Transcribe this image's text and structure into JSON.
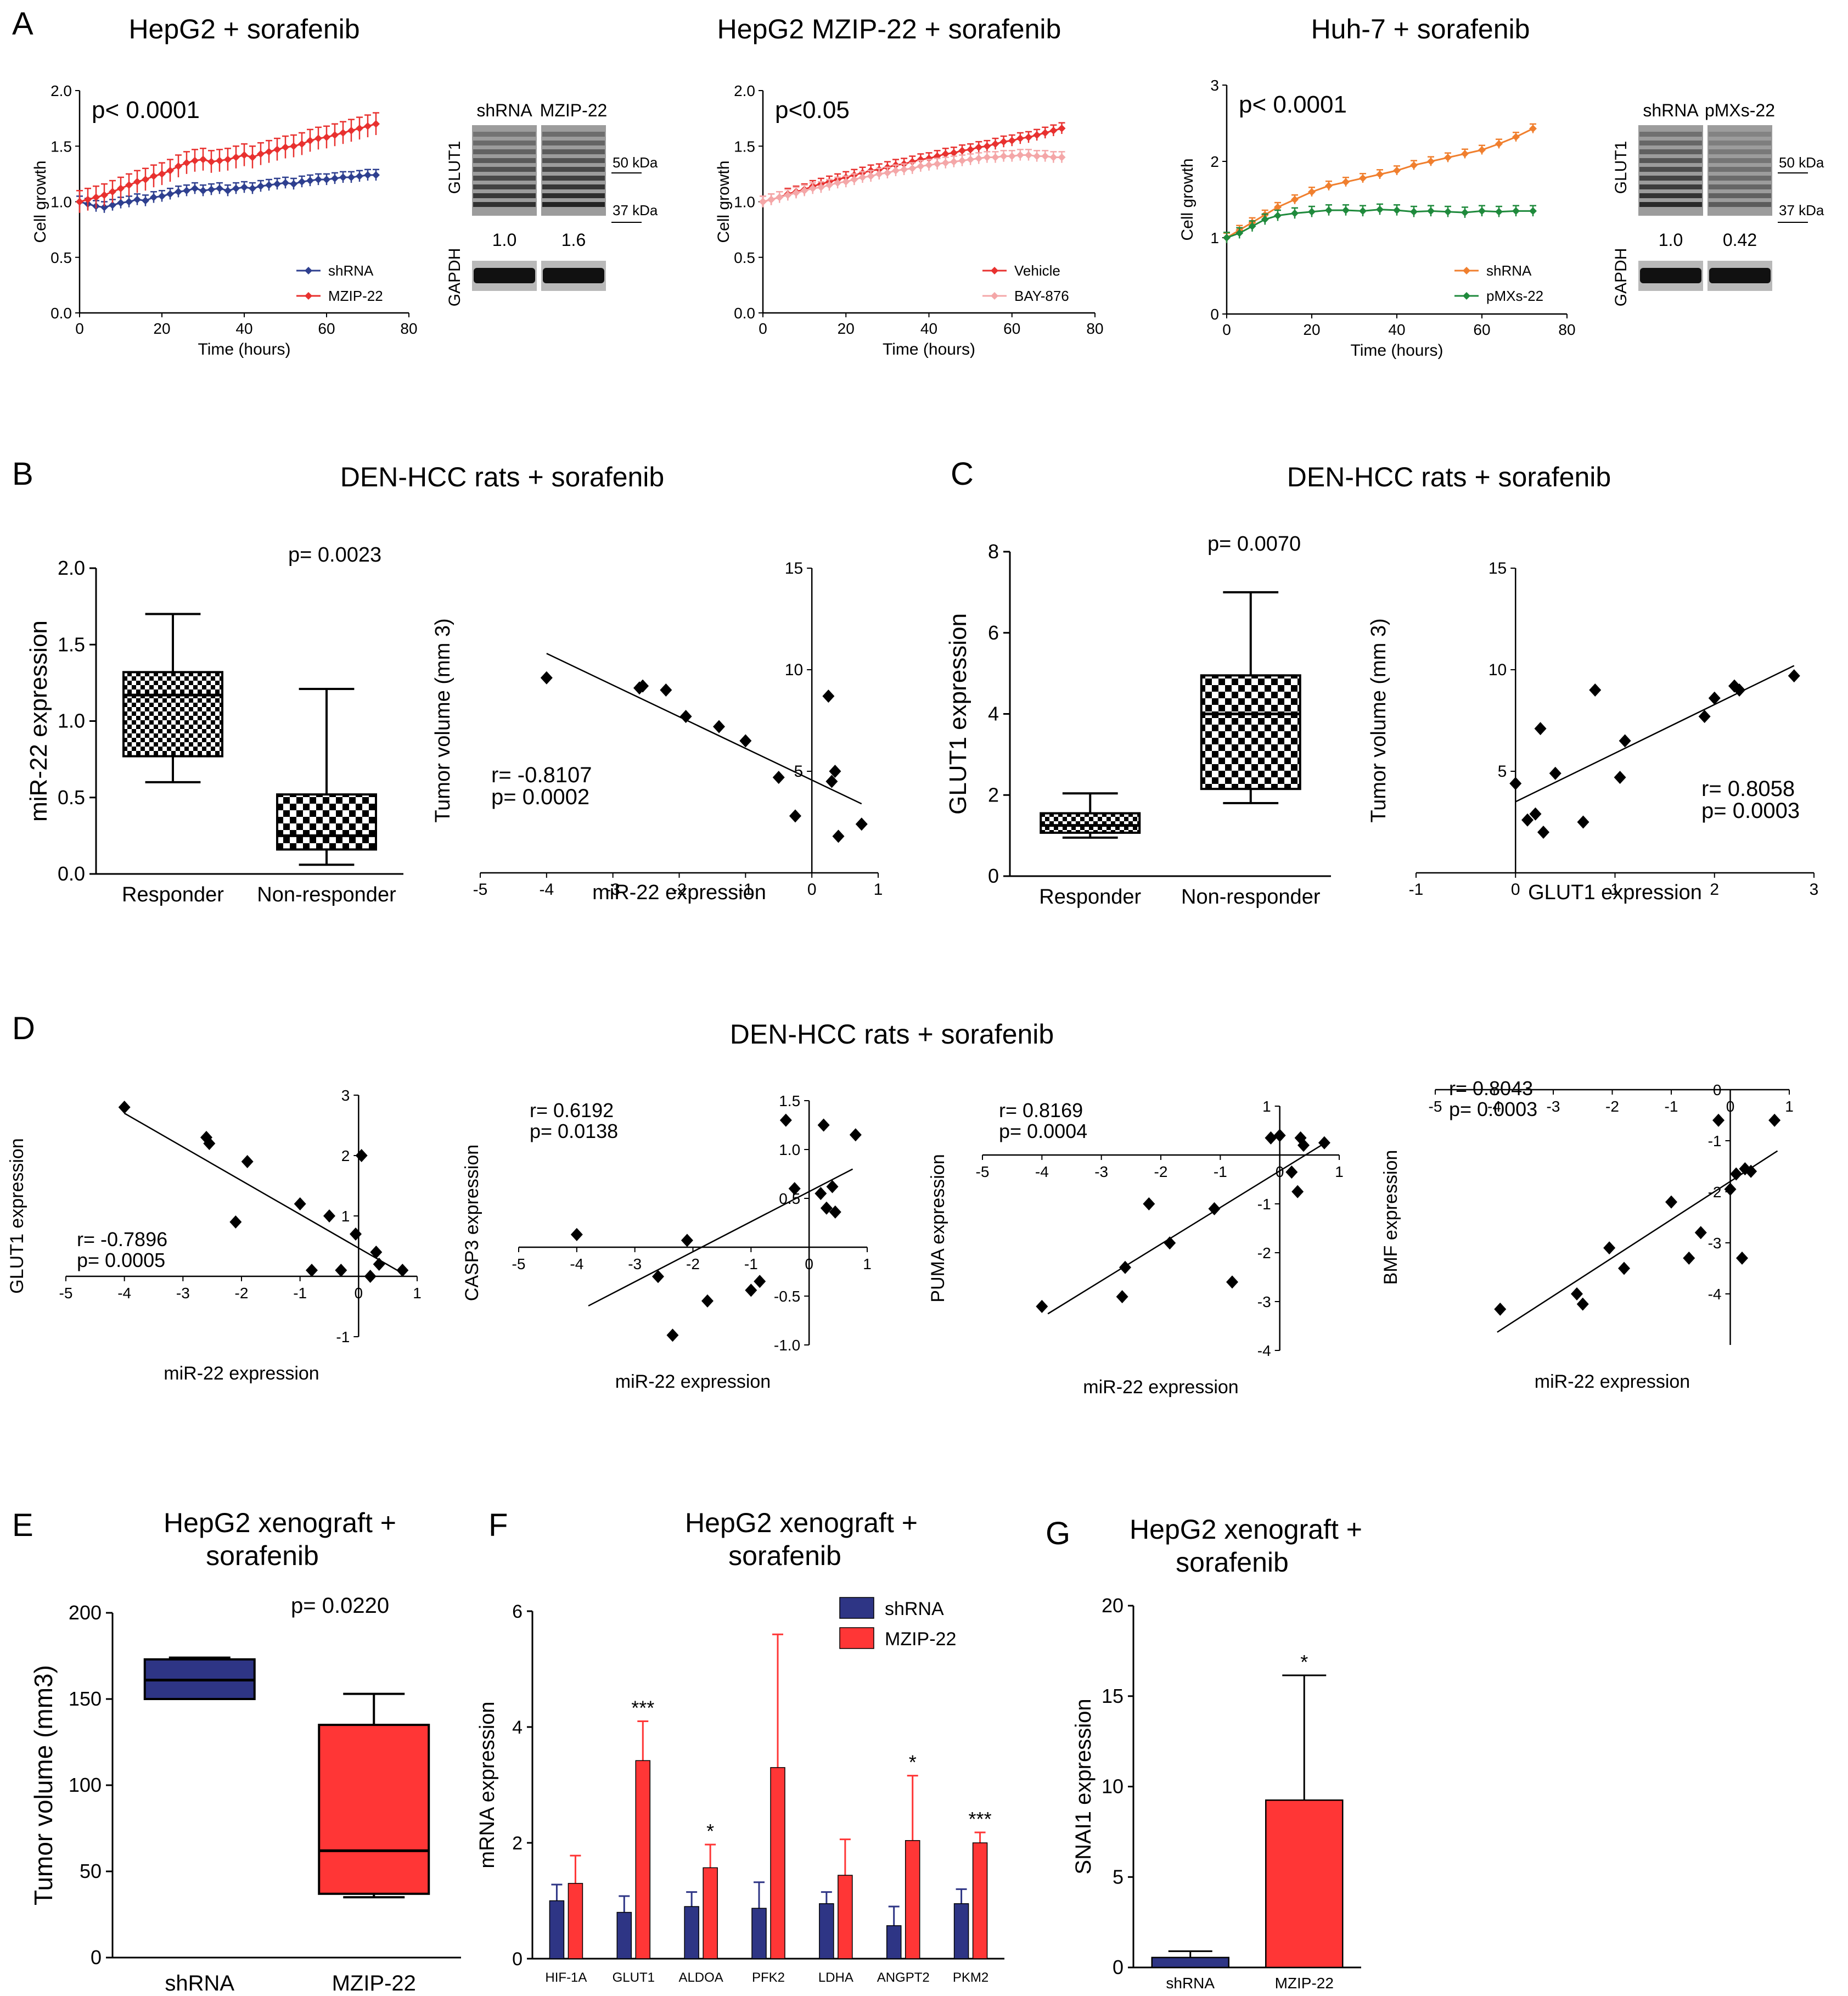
{
  "panels": {
    "A": "A",
    "B": "B",
    "C": "C",
    "D": "D",
    "E": "E",
    "F": "F",
    "G": "G"
  },
  "titles": {
    "a1": "HepG2 + sorafenib",
    "a2": "HepG2 MZIP-22 + sorafenib",
    "a3": "Huh-7 + sorafenib",
    "b": "DEN-HCC rats + sorafenib",
    "c": "DEN-HCC rats + sorafenib",
    "d": "DEN-HCC rats + sorafenib",
    "e1": "HepG2 xenograft  +",
    "e2": "sorafenib",
    "f1": "HepG2 xenograft  +",
    "f2": "sorafenib",
    "g1": "HepG2 xenograft  +",
    "g2": "sorafenib"
  },
  "blots": [
    {
      "lanes": [
        "shRNA",
        "MZIP-22"
      ],
      "protein": "GLUT1",
      "loading": "GAPDH",
      "markers": [
        "50 kDa",
        "37 kDa"
      ],
      "quant": [
        "1.0",
        "1.6"
      ]
    },
    {
      "lanes": [
        "shRNA",
        "pMXs-22"
      ],
      "protein": "GLUT1",
      "loading": "GAPDH",
      "markers": [
        "50 kDa",
        "37 kDa"
      ],
      "quant": [
        "1.0",
        "0.42"
      ]
    }
  ],
  "chart_data": [
    {
      "id": "A1",
      "type": "line",
      "title": "HepG2 + sorafenib",
      "xlabel": "Time (hours)",
      "ylabel": "Cell growth",
      "xlim": [
        0,
        80
      ],
      "ylim": [
        0,
        2.0
      ],
      "xticks": [
        0,
        20,
        40,
        60,
        80
      ],
      "yticks": [
        0,
        0.5,
        1.0,
        1.5,
        2.0
      ],
      "yticklabels": [
        "0.0",
        "0.5",
        "1.0",
        "1.5",
        "2.0"
      ],
      "annotation": "p< 0.0001",
      "x": [
        0,
        2,
        4,
        6,
        8,
        10,
        12,
        14,
        16,
        18,
        20,
        22,
        24,
        26,
        28,
        30,
        32,
        34,
        36,
        38,
        40,
        42,
        44,
        46,
        48,
        50,
        52,
        54,
        56,
        58,
        60,
        62,
        64,
        66,
        68,
        70,
        72
      ],
      "series": [
        {
          "name": "shRNA",
          "color": "#2e3f8f",
          "values": [
            1.0,
            0.98,
            0.96,
            0.95,
            0.97,
            0.99,
            1.0,
            1.02,
            1.01,
            1.04,
            1.05,
            1.07,
            1.09,
            1.1,
            1.12,
            1.1,
            1.11,
            1.12,
            1.1,
            1.12,
            1.13,
            1.12,
            1.14,
            1.15,
            1.16,
            1.17,
            1.16,
            1.18,
            1.19,
            1.2,
            1.2,
            1.21,
            1.22,
            1.22,
            1.23,
            1.24,
            1.24
          ],
          "err": 0.05
        },
        {
          "name": "MZIP-22",
          "color": "#e8312f",
          "values": [
            1.0,
            1.02,
            1.04,
            1.06,
            1.09,
            1.12,
            1.15,
            1.18,
            1.2,
            1.23,
            1.25,
            1.28,
            1.32,
            1.35,
            1.37,
            1.38,
            1.36,
            1.37,
            1.38,
            1.4,
            1.42,
            1.4,
            1.43,
            1.45,
            1.47,
            1.49,
            1.5,
            1.52,
            1.55,
            1.57,
            1.58,
            1.6,
            1.62,
            1.64,
            1.66,
            1.68,
            1.7
          ],
          "err": 0.1
        }
      ]
    },
    {
      "id": "A2",
      "type": "line",
      "title": "HepG2 MZIP-22 + sorafenib",
      "xlabel": "Time (hours)",
      "ylabel": "Cell growth",
      "xlim": [
        0,
        80
      ],
      "ylim": [
        0,
        2.0
      ],
      "xticks": [
        0,
        20,
        40,
        60,
        80
      ],
      "yticks": [
        0,
        0.5,
        1.0,
        1.5,
        2.0
      ],
      "yticklabels": [
        "0.0",
        "0.5",
        "1.0",
        "1.5",
        "2.0"
      ],
      "annotation": "p<0.05",
      "x": [
        0,
        2,
        4,
        6,
        8,
        10,
        12,
        14,
        16,
        18,
        20,
        22,
        24,
        26,
        28,
        30,
        32,
        34,
        36,
        38,
        40,
        42,
        44,
        46,
        48,
        50,
        52,
        54,
        56,
        58,
        60,
        62,
        64,
        66,
        68,
        70,
        72
      ],
      "series": [
        {
          "name": "Vehicle",
          "color": "#e8312f",
          "values": [
            1.0,
            1.02,
            1.04,
            1.07,
            1.09,
            1.11,
            1.14,
            1.16,
            1.18,
            1.2,
            1.22,
            1.24,
            1.26,
            1.28,
            1.29,
            1.31,
            1.33,
            1.34,
            1.36,
            1.38,
            1.39,
            1.41,
            1.43,
            1.44,
            1.46,
            1.47,
            1.49,
            1.5,
            1.52,
            1.54,
            1.55,
            1.57,
            1.58,
            1.6,
            1.62,
            1.64,
            1.66
          ],
          "err": 0.05
        },
        {
          "name": "BAY-876",
          "color": "#f4a7a8",
          "values": [
            1.0,
            1.02,
            1.04,
            1.06,
            1.08,
            1.1,
            1.12,
            1.13,
            1.15,
            1.17,
            1.18,
            1.2,
            1.22,
            1.23,
            1.25,
            1.26,
            1.28,
            1.29,
            1.3,
            1.32,
            1.33,
            1.34,
            1.35,
            1.36,
            1.37,
            1.38,
            1.39,
            1.4,
            1.4,
            1.41,
            1.41,
            1.42,
            1.42,
            1.41,
            1.41,
            1.4,
            1.4
          ],
          "err": 0.05
        }
      ]
    },
    {
      "id": "A3",
      "type": "line",
      "title": "Huh-7 + sorafenib",
      "xlabel": "Time (hours)",
      "ylabel": "Cell growth",
      "xlim": [
        0,
        80
      ],
      "ylim": [
        0,
        3
      ],
      "xticks": [
        0,
        20,
        40,
        60,
        80
      ],
      "yticks": [
        0,
        1,
        2,
        3
      ],
      "yticklabels": [
        "0",
        "1",
        "2",
        "3"
      ],
      "annotation": "p< 0.0001",
      "x": [
        0,
        3,
        6,
        9,
        12,
        16,
        20,
        24,
        28,
        32,
        36,
        40,
        44,
        48,
        52,
        56,
        60,
        64,
        68,
        72
      ],
      "series": [
        {
          "name": "shRNA",
          "color": "#f07f2e",
          "values": [
            1.0,
            1.1,
            1.2,
            1.3,
            1.4,
            1.5,
            1.6,
            1.68,
            1.73,
            1.78,
            1.83,
            1.88,
            1.95,
            2.0,
            2.05,
            2.1,
            2.15,
            2.23,
            2.32,
            2.43
          ],
          "err": 0.06
        },
        {
          "name": "pMXs-22",
          "color": "#1f8a3c",
          "values": [
            1.0,
            1.06,
            1.15,
            1.24,
            1.29,
            1.32,
            1.34,
            1.36,
            1.36,
            1.35,
            1.37,
            1.36,
            1.34,
            1.35,
            1.34,
            1.33,
            1.35,
            1.34,
            1.35,
            1.35
          ],
          "err": 0.07
        }
      ]
    },
    {
      "id": "B1",
      "type": "box",
      "ylabel": "miR-22 expression",
      "ylim": [
        0,
        2.0
      ],
      "yticks": [
        0,
        0.5,
        1.0,
        1.5,
        2.0
      ],
      "yticklabels": [
        "0.0",
        "0.5",
        "1.0",
        "1.5",
        "2.0"
      ],
      "categories": [
        "Responder",
        "Non-responder"
      ],
      "boxes": [
        {
          "min": 0.6,
          "q1": 0.77,
          "median": 1.17,
          "q3": 1.32,
          "max": 1.7,
          "fill": "checker-small"
        },
        {
          "min": 0.06,
          "q1": 0.16,
          "median": 0.25,
          "q3": 0.52,
          "max": 1.21,
          "fill": "checker-large"
        }
      ],
      "annotation": "p= 0.0023"
    },
    {
      "id": "B2",
      "type": "scatter",
      "xlabel": "miR-22 expression",
      "ylabel": "Tumor volume (mm 3)",
      "xlim": [
        -5,
        1
      ],
      "ylim": [
        0,
        15
      ],
      "xticks": [
        -5,
        -4,
        -3,
        -2,
        -1,
        0,
        1
      ],
      "yticks": [
        5,
        10,
        15
      ],
      "x": [
        -4.0,
        -2.6,
        -2.55,
        -2.2,
        -1.9,
        -1.4,
        -1.0,
        -0.5,
        -0.25,
        0.25,
        0.3,
        0.35,
        0.4,
        0.75
      ],
      "y": [
        9.6,
        9.1,
        9.2,
        9.0,
        7.7,
        7.2,
        6.5,
        4.7,
        2.8,
        8.7,
        4.5,
        5.0,
        1.8,
        2.4
      ],
      "fit": {
        "x": [
          -4.0,
          0.75
        ],
        "y": [
          10.8,
          3.4
        ]
      },
      "annotation": [
        "r= -0.8107",
        "p=  0.0002"
      ]
    },
    {
      "id": "C1",
      "type": "box",
      "ylabel": "GLUT1 expression",
      "ylim": [
        0,
        8
      ],
      "yticks": [
        0,
        2,
        4,
        6,
        8
      ],
      "yticklabels": [
        "0",
        "2",
        "4",
        "6",
        "8"
      ],
      "categories": [
        "Responder",
        "Non-responder"
      ],
      "boxes": [
        {
          "min": 0.95,
          "q1": 1.07,
          "median": 1.25,
          "q3": 1.55,
          "max": 2.04,
          "fill": "checker-small"
        },
        {
          "min": 1.8,
          "q1": 2.15,
          "median": 4.0,
          "q3": 4.95,
          "max": 7.0,
          "fill": "checker-large"
        }
      ],
      "annotation": "p= 0.0070"
    },
    {
      "id": "C2",
      "type": "scatter",
      "xlabel": "GLUT1 expression",
      "ylabel": "Tumor volume (mm 3)",
      "xlim": [
        -1,
        3
      ],
      "ylim": [
        0,
        15
      ],
      "xticks": [
        -1,
        0,
        1,
        2,
        3
      ],
      "yticks": [
        5,
        10,
        15
      ],
      "x": [
        0.0,
        0.12,
        0.2,
        0.25,
        0.28,
        0.4,
        0.68,
        0.8,
        1.05,
        1.1,
        1.9,
        2.0,
        2.2,
        2.25,
        2.8
      ],
      "y": [
        4.4,
        2.6,
        2.9,
        7.1,
        2.0,
        4.9,
        2.5,
        9.0,
        4.7,
        6.5,
        7.7,
        8.6,
        9.2,
        9.0,
        9.7
      ],
      "fit": {
        "x": [
          0.0,
          2.8
        ],
        "y": [
          3.5,
          10.2
        ]
      },
      "annotation": [
        "r=  0.8058",
        "p=  0.0003"
      ]
    },
    {
      "id": "D1",
      "type": "scatter",
      "xlabel": "miR-22 expression",
      "ylabel": "GLUT1 expression",
      "xlim": [
        -5,
        1
      ],
      "ylim": [
        -1,
        3
      ],
      "xticks": [
        -5,
        -4,
        -3,
        -2,
        -1,
        0,
        1
      ],
      "yticks": [
        -1,
        1,
        2,
        3
      ],
      "x": [
        -4.0,
        -2.6,
        -2.55,
        -2.1,
        -1.9,
        -1.0,
        -0.8,
        -0.5,
        -0.3,
        -0.05,
        0.05,
        0.2,
        0.3,
        0.35,
        0.75
      ],
      "y": [
        2.8,
        2.3,
        2.2,
        0.9,
        1.9,
        1.2,
        0.1,
        1.0,
        0.1,
        0.7,
        2.0,
        0.0,
        0.4,
        0.2,
        0.1
      ],
      "fit": {
        "x": [
          -4.0,
          0.75
        ],
        "y": [
          2.7,
          0.05
        ]
      },
      "annotation": [
        "r= -0.7896",
        "p=  0.0005"
      ]
    },
    {
      "id": "D2",
      "type": "scatter",
      "xlabel": "miR-22 expression",
      "ylabel": "CASP3 expression",
      "xlim": [
        -5,
        1
      ],
      "ylim": [
        -1.0,
        1.5
      ],
      "xticks": [
        -5,
        -4,
        -3,
        -2,
        -1,
        0,
        1
      ],
      "yticks": [
        -1.0,
        -0.5,
        0.5,
        1.0,
        1.5
      ],
      "yticklabels": [
        "-1.0",
        "-0.5",
        "0.5",
        "1.0",
        "1.5"
      ],
      "x": [
        -4.0,
        -2.6,
        -2.35,
        -2.1,
        -1.75,
        -1.0,
        -0.85,
        -0.4,
        -0.25,
        0.2,
        0.25,
        0.3,
        0.4,
        0.45,
        0.8
      ],
      "y": [
        0.13,
        -0.3,
        -0.9,
        0.07,
        -0.55,
        -0.44,
        -0.35,
        1.3,
        0.6,
        0.55,
        1.25,
        0.4,
        0.62,
        0.36,
        1.15
      ],
      "fit": {
        "x": [
          -3.8,
          0.75
        ],
        "y": [
          -0.6,
          0.8
        ]
      },
      "annotation": [
        "r= 0.6192",
        "p= 0.0138"
      ]
    },
    {
      "id": "D3",
      "type": "scatter",
      "xlabel": "miR-22 expression",
      "ylabel": "PUMA expression",
      "xlim": [
        -5,
        1
      ],
      "ylim": [
        -4,
        1
      ],
      "xticks": [
        -5,
        -4,
        -3,
        -2,
        -1,
        0,
        1
      ],
      "yticks": [
        -4,
        -3,
        -2,
        -1,
        1
      ],
      "x": [
        -4.0,
        -2.65,
        -2.6,
        -2.2,
        -1.85,
        -1.1,
        -0.8,
        -0.15,
        0.0,
        0.2,
        0.3,
        0.35,
        0.4,
        0.75
      ],
      "y": [
        -3.1,
        -2.9,
        -2.3,
        -1.0,
        -1.8,
        -1.1,
        -2.6,
        0.35,
        0.4,
        -0.35,
        -0.75,
        0.35,
        0.2,
        0.25
      ],
      "fit": {
        "x": [
          -3.9,
          0.7
        ],
        "y": [
          -3.25,
          0.2
        ]
      },
      "annotation": [
        "r=    0.8169",
        "p=    0.0004"
      ]
    },
    {
      "id": "D4",
      "type": "scatter",
      "xlabel": "miR-22 expression",
      "ylabel": "BMF expression",
      "xlim": [
        -5,
        1
      ],
      "ylim": [
        -5,
        0
      ],
      "xticks": [
        -5,
        -4,
        -3,
        -2,
        -1,
        0,
        1
      ],
      "yticks": [
        -4,
        -3,
        -2,
        -1,
        0
      ],
      "x": [
        -3.9,
        -2.6,
        -2.5,
        -2.05,
        -1.8,
        -1.0,
        -0.7,
        -0.5,
        -0.2,
        0.0,
        0.1,
        0.2,
        0.25,
        0.35,
        0.75
      ],
      "y": [
        -4.3,
        -4.0,
        -4.2,
        -3.1,
        -3.5,
        -2.2,
        -3.3,
        -2.8,
        -0.6,
        -1.95,
        -1.65,
        -3.3,
        -1.55,
        -1.6,
        -0.6
      ],
      "fit": {
        "x": [
          -3.95,
          0.8
        ],
        "y": [
          -4.75,
          -1.2
        ]
      },
      "annotation": [
        "r=  0.8043",
        "p=  0.0003"
      ]
    },
    {
      "id": "E",
      "type": "box",
      "ylabel": "Tumor volume (mm3)",
      "ylim": [
        0,
        200
      ],
      "yticks": [
        0,
        50,
        100,
        150,
        200
      ],
      "categories": [
        "shRNA",
        "MZIP-22"
      ],
      "boxes": [
        {
          "min": 150,
          "q1": 150,
          "median": 161,
          "q3": 173,
          "max": 174,
          "fill": "#2e3585"
        },
        {
          "min": 35,
          "q1": 37,
          "median": 62,
          "q3": 135,
          "max": 153,
          "fill": "#ff3636"
        }
      ],
      "annotation": "p=  0.0220"
    },
    {
      "id": "F",
      "type": "bar",
      "ylabel": "mRNA expression",
      "ylim": [
        0,
        6
      ],
      "yticks": [
        0,
        2,
        4,
        6
      ],
      "categories": [
        "HIF-1A",
        "GLUT1",
        "ALDOA",
        "PFK2",
        "LDHA",
        "ANGPT2",
        "PKM2"
      ],
      "series": [
        {
          "name": "shRNA",
          "color": "#2e3585",
          "values": [
            1.0,
            0.8,
            0.9,
            0.87,
            0.95,
            0.57,
            0.95
          ],
          "err": [
            0.28,
            0.28,
            0.25,
            0.45,
            0.2,
            0.33,
            0.25
          ]
        },
        {
          "name": "MZIP-22",
          "color": "#ff3636",
          "values": [
            1.3,
            3.42,
            1.57,
            3.3,
            1.44,
            2.04,
            2.0
          ],
          "err": [
            0.48,
            0.68,
            0.4,
            2.3,
            0.62,
            1.12,
            0.18
          ]
        }
      ],
      "significance": [
        "",
        "***",
        "*",
        "",
        "",
        "*",
        "***"
      ]
    },
    {
      "id": "G",
      "type": "bar",
      "ylabel": "SNAI1 expression",
      "ylim": [
        0,
        20
      ],
      "yticks": [
        0,
        5,
        10,
        15,
        20
      ],
      "categories": [
        "shRNA",
        "MZIP-22"
      ],
      "values": [
        0.55,
        9.25
      ],
      "err": [
        0.35,
        6.9
      ],
      "colors": [
        "#2e3585",
        "#ff3636"
      ],
      "significance": [
        "",
        "*"
      ]
    }
  ]
}
